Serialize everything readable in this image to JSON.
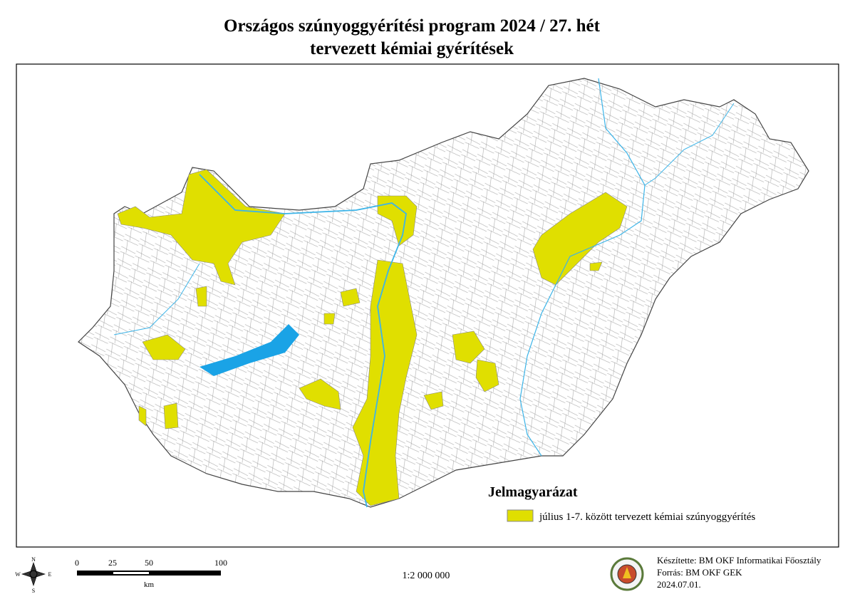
{
  "title": [
    "Országos szúnyoggyérítési program 2024 / 27. hét",
    "tervezett kémiai gyérítések"
  ],
  "legend": {
    "title": "Jelmagyarázat",
    "items": [
      "július 1-7. között tervezett kémiai szúnyoggyérítés"
    ]
  },
  "compass": [
    "N",
    "E",
    "S",
    "W"
  ],
  "scale_bar": {
    "ticks": [
      "0",
      "25",
      "50",
      "100"
    ],
    "unit": "km"
  },
  "scale": "1:2 000 000",
  "credits": [
    "Készítette: BM OKF Informatikai Főosztály",
    "Forrás: BM OKF GEK",
    "2024.07.01."
  ]
}
